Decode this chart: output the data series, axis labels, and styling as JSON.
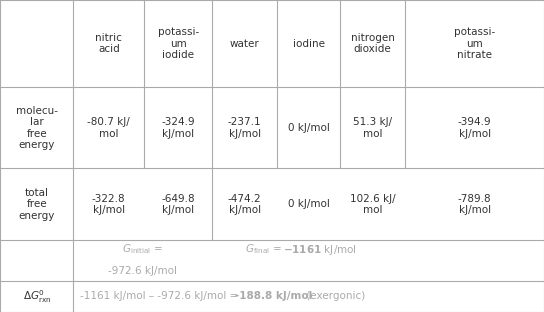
{
  "col_headers": [
    "",
    "nitric\nacid",
    "potassi-\num\niodide",
    "water",
    "iodine",
    "nitrogen\ndioxide",
    "potassi-\num\nnitrate"
  ],
  "row_mol_label": "molecu-\nlar\nfree\nenergy",
  "row_mol_values": [
    "-80.7 kJ/\nmol",
    "-324.9\nkJ/mol",
    "-237.1\nkJ/mol",
    "0 kJ/mol",
    "51.3 kJ/\nmol",
    "-394.9\nkJ/mol"
  ],
  "row_tot_label": "total\nfree\nenergy",
  "row_tot_values": [
    "-322.8\nkJ/mol",
    "-649.8\nkJ/mol",
    "-474.2\nkJ/mol",
    "0 kJ/mol",
    "102.6 kJ/\nmol",
    "-789.8\nkJ/mol"
  ],
  "g_initial_line1": "G_initial =",
  "g_initial_line2": "-972.6 kJ/mol",
  "g_final_text": "G_final = -1161 kJ/mol",
  "delta_label": "ΔG°_rxn",
  "delta_normal1": "-1161 kJ/mol – -972.6 kJ/mol = ",
  "delta_bold": "-188.8 kJ/mol",
  "delta_normal2": " (exergonic)",
  "bg_color": "#ffffff",
  "grid_color": "#aaaaaa",
  "text_color": "#333333",
  "light_color": "#aaaaaa",
  "font_size": 7.5,
  "col_bounds": [
    0.0,
    0.135,
    0.265,
    0.39,
    0.51,
    0.625,
    0.745,
    1.0
  ],
  "row_bounds": [
    1.0,
    0.72,
    0.46,
    0.23,
    0.1,
    0.0
  ]
}
